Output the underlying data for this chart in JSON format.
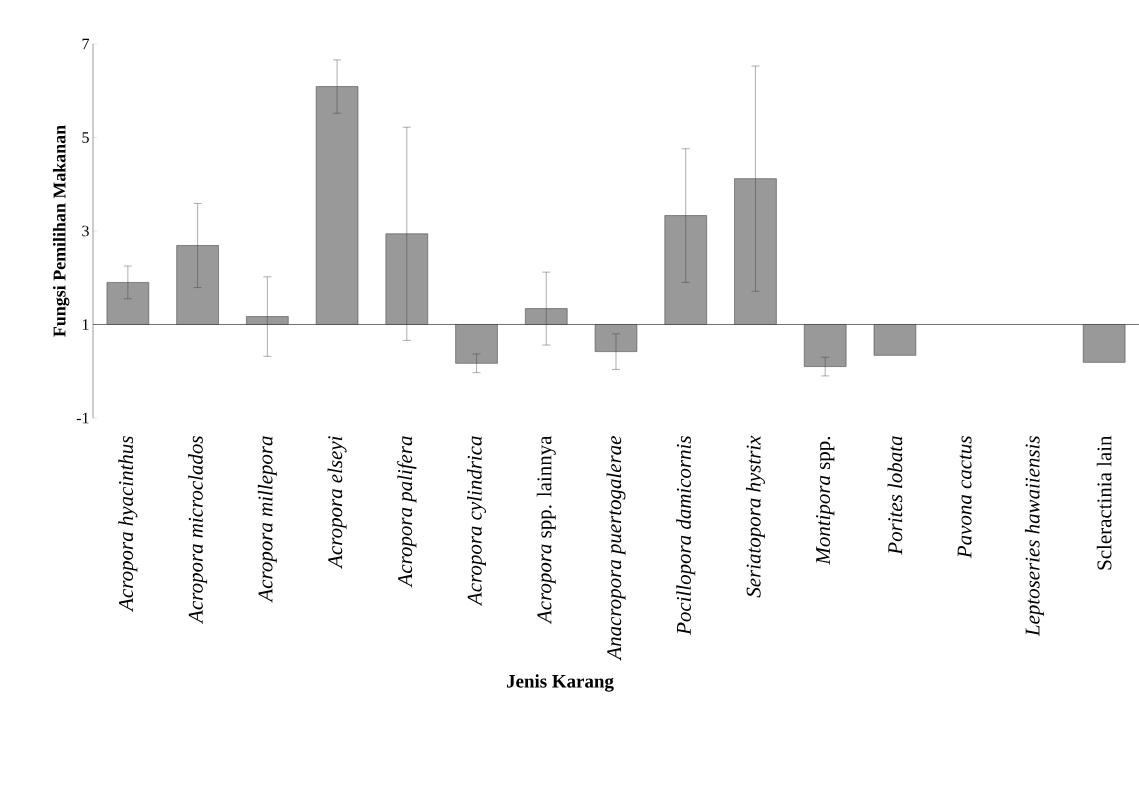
{
  "chart_data": {
    "type": "bar",
    "xlabel": "Jenis Karang",
    "ylabel": "Fungsi Pemilihan Makanan",
    "categories": [
      "*Acropora hyacinthus*",
      "*Acropora microclados*",
      "*Acropora millepora*",
      "*Acropora elseyi*",
      "*Acropora palifera*",
      "*Acropora cylindrica*",
      "*Acropora* spp. lainnya",
      "*Anacropora puertogalerae*",
      "*Pocillopora damicornis*",
      "*Seriatopora hystrix*",
      "*Montipora* spp.",
      "*Porites lobata*",
      "*Pavona cactus*",
      "*Leptoseries hawaiiensis*",
      "Scleractinia lain"
    ],
    "base": [
      1,
      1,
      1,
      1,
      1,
      1,
      1,
      1,
      1,
      1,
      1,
      1,
      null,
      null,
      1
    ],
    "values": [
      0.9,
      1.69,
      0.17,
      5.09,
      1.94,
      -0.83,
      0.34,
      -0.58,
      2.33,
      3.12,
      -0.9,
      -0.66,
      null,
      null,
      -0.81
    ],
    "errors": [
      0.35,
      0.9,
      0.85,
      0.57,
      2.28,
      0.2,
      0.78,
      0.38,
      1.43,
      2.41,
      0.2,
      null,
      null,
      null,
      null
    ],
    "color": "#999999",
    "ylim": [
      -1,
      7
    ],
    "yticks": [
      -1,
      1,
      3,
      5,
      7
    ]
  }
}
